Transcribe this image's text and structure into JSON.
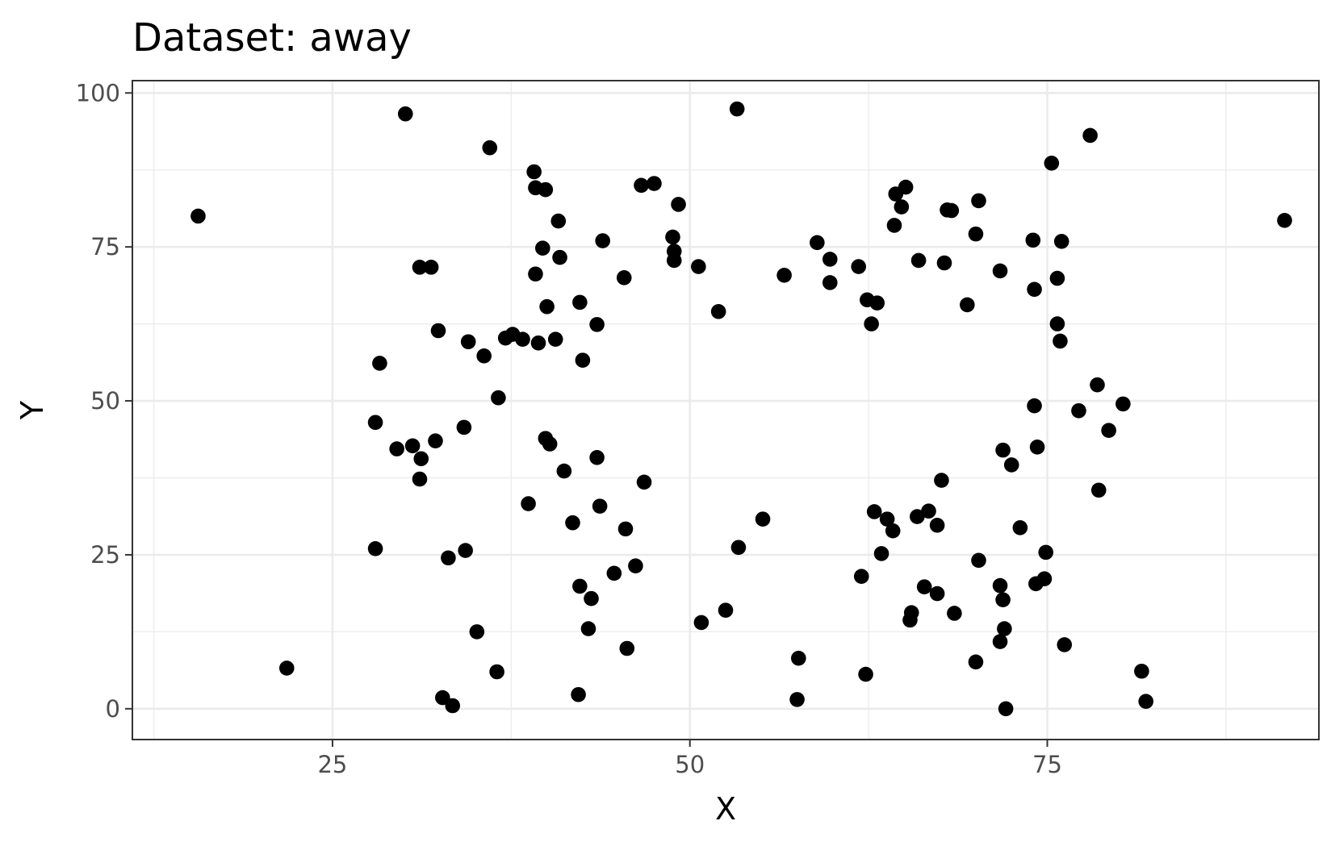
{
  "chart_data": {
    "type": "scatter",
    "title": "Dataset: away",
    "xlabel": "X",
    "ylabel": "Y",
    "xlim": [
      11,
      94
    ],
    "ylim": [
      -5,
      102
    ],
    "x_ticks": [
      25,
      50,
      75
    ],
    "y_ticks": [
      0,
      25,
      50,
      75,
      100
    ],
    "x_minor_ticks": [
      12.5,
      37.5,
      62.5,
      87.5
    ],
    "y_minor_ticks": [
      12.5,
      37.5,
      62.5,
      87.5
    ],
    "grid": true,
    "point_color": "#000000",
    "points": [
      {
        "x": 15.6,
        "y": 80.0
      },
      {
        "x": 21.8,
        "y": 6.6
      },
      {
        "x": 28.0,
        "y": 46.5
      },
      {
        "x": 28.0,
        "y": 26.0
      },
      {
        "x": 28.3,
        "y": 56.1
      },
      {
        "x": 29.5,
        "y": 42.2
      },
      {
        "x": 30.1,
        "y": 96.6
      },
      {
        "x": 30.6,
        "y": 42.7
      },
      {
        "x": 31.1,
        "y": 71.7
      },
      {
        "x": 31.1,
        "y": 37.3
      },
      {
        "x": 31.2,
        "y": 40.6
      },
      {
        "x": 31.9,
        "y": 71.7
      },
      {
        "x": 32.2,
        "y": 43.5
      },
      {
        "x": 32.4,
        "y": 61.4
      },
      {
        "x": 32.7,
        "y": 1.8
      },
      {
        "x": 33.1,
        "y": 24.5
      },
      {
        "x": 33.4,
        "y": 0.5
      },
      {
        "x": 34.2,
        "y": 45.7
      },
      {
        "x": 34.3,
        "y": 25.7
      },
      {
        "x": 34.5,
        "y": 59.6
      },
      {
        "x": 35.1,
        "y": 12.5
      },
      {
        "x": 35.6,
        "y": 57.3
      },
      {
        "x": 36.0,
        "y": 91.1
      },
      {
        "x": 36.5,
        "y": 6.0
      },
      {
        "x": 36.6,
        "y": 50.5
      },
      {
        "x": 37.1,
        "y": 60.2
      },
      {
        "x": 37.6,
        "y": 60.8
      },
      {
        "x": 38.3,
        "y": 60.0
      },
      {
        "x": 38.7,
        "y": 33.3
      },
      {
        "x": 39.1,
        "y": 87.2
      },
      {
        "x": 39.2,
        "y": 84.6
      },
      {
        "x": 39.2,
        "y": 70.6
      },
      {
        "x": 39.4,
        "y": 59.4
      },
      {
        "x": 39.7,
        "y": 74.8
      },
      {
        "x": 39.9,
        "y": 84.3
      },
      {
        "x": 39.9,
        "y": 43.9
      },
      {
        "x": 40.0,
        "y": 65.3
      },
      {
        "x": 40.2,
        "y": 43.0
      },
      {
        "x": 40.6,
        "y": 60.0
      },
      {
        "x": 40.8,
        "y": 79.2
      },
      {
        "x": 40.9,
        "y": 73.3
      },
      {
        "x": 41.2,
        "y": 38.6
      },
      {
        "x": 41.8,
        "y": 30.2
      },
      {
        "x": 42.2,
        "y": 2.3
      },
      {
        "x": 42.3,
        "y": 66.0
      },
      {
        "x": 42.3,
        "y": 19.9
      },
      {
        "x": 42.5,
        "y": 56.6
      },
      {
        "x": 42.9,
        "y": 13.0
      },
      {
        "x": 43.1,
        "y": 17.9
      },
      {
        "x": 43.5,
        "y": 62.4
      },
      {
        "x": 43.5,
        "y": 40.8
      },
      {
        "x": 43.7,
        "y": 32.9
      },
      {
        "x": 43.9,
        "y": 76.0
      },
      {
        "x": 44.7,
        "y": 22.0
      },
      {
        "x": 45.4,
        "y": 70.0
      },
      {
        "x": 45.5,
        "y": 29.2
      },
      {
        "x": 45.6,
        "y": 9.8
      },
      {
        "x": 46.2,
        "y": 23.2
      },
      {
        "x": 46.6,
        "y": 85.0
      },
      {
        "x": 46.8,
        "y": 36.8
      },
      {
        "x": 47.5,
        "y": 85.3
      },
      {
        "x": 48.8,
        "y": 76.6
      },
      {
        "x": 48.9,
        "y": 74.3
      },
      {
        "x": 48.9,
        "y": 72.8
      },
      {
        "x": 49.2,
        "y": 81.9
      },
      {
        "x": 50.6,
        "y": 71.8
      },
      {
        "x": 50.8,
        "y": 14.0
      },
      {
        "x": 52.0,
        "y": 64.5
      },
      {
        "x": 52.5,
        "y": 16.0
      },
      {
        "x": 53.3,
        "y": 97.4
      },
      {
        "x": 53.4,
        "y": 26.2
      },
      {
        "x": 55.1,
        "y": 30.8
      },
      {
        "x": 56.6,
        "y": 70.4
      },
      {
        "x": 57.5,
        "y": 1.5
      },
      {
        "x": 57.6,
        "y": 8.2
      },
      {
        "x": 58.9,
        "y": 75.7
      },
      {
        "x": 59.8,
        "y": 73.0
      },
      {
        "x": 59.8,
        "y": 69.2
      },
      {
        "x": 61.8,
        "y": 71.8
      },
      {
        "x": 62.0,
        "y": 21.5
      },
      {
        "x": 62.3,
        "y": 5.6
      },
      {
        "x": 62.4,
        "y": 66.4
      },
      {
        "x": 62.7,
        "y": 62.5
      },
      {
        "x": 62.9,
        "y": 32.0
      },
      {
        "x": 63.1,
        "y": 65.9
      },
      {
        "x": 63.4,
        "y": 25.2
      },
      {
        "x": 63.8,
        "y": 30.8
      },
      {
        "x": 64.2,
        "y": 28.9
      },
      {
        "x": 64.3,
        "y": 78.5
      },
      {
        "x": 64.4,
        "y": 83.6
      },
      {
        "x": 64.8,
        "y": 81.5
      },
      {
        "x": 65.1,
        "y": 84.7
      },
      {
        "x": 65.4,
        "y": 14.4
      },
      {
        "x": 65.5,
        "y": 15.6
      },
      {
        "x": 65.9,
        "y": 31.2
      },
      {
        "x": 66.0,
        "y": 72.8
      },
      {
        "x": 66.4,
        "y": 19.8
      },
      {
        "x": 66.7,
        "y": 32.1
      },
      {
        "x": 67.3,
        "y": 18.7
      },
      {
        "x": 67.3,
        "y": 29.8
      },
      {
        "x": 67.6,
        "y": 37.1
      },
      {
        "x": 67.8,
        "y": 72.4
      },
      {
        "x": 68.0,
        "y": 81.0
      },
      {
        "x": 68.3,
        "y": 80.9
      },
      {
        "x": 68.5,
        "y": 15.5
      },
      {
        "x": 69.4,
        "y": 65.6
      },
      {
        "x": 70.0,
        "y": 77.1
      },
      {
        "x": 70.0,
        "y": 7.6
      },
      {
        "x": 70.2,
        "y": 82.5
      },
      {
        "x": 70.2,
        "y": 24.1
      },
      {
        "x": 71.7,
        "y": 71.1
      },
      {
        "x": 71.7,
        "y": 20.0
      },
      {
        "x": 71.7,
        "y": 10.9
      },
      {
        "x": 71.9,
        "y": 42.0
      },
      {
        "x": 71.9,
        "y": 17.7
      },
      {
        "x": 72.0,
        "y": 13.0
      },
      {
        "x": 72.1,
        "y": 0.0
      },
      {
        "x": 72.5,
        "y": 39.6
      },
      {
        "x": 73.1,
        "y": 29.4
      },
      {
        "x": 74.0,
        "y": 76.1
      },
      {
        "x": 74.1,
        "y": 49.2
      },
      {
        "x": 74.1,
        "y": 68.1
      },
      {
        "x": 74.2,
        "y": 20.3
      },
      {
        "x": 74.3,
        "y": 42.5
      },
      {
        "x": 74.8,
        "y": 21.1
      },
      {
        "x": 74.9,
        "y": 25.4
      },
      {
        "x": 75.3,
        "y": 88.6
      },
      {
        "x": 75.7,
        "y": 69.9
      },
      {
        "x": 75.7,
        "y": 62.5
      },
      {
        "x": 75.9,
        "y": 59.7
      },
      {
        "x": 76.0,
        "y": 75.9
      },
      {
        "x": 76.2,
        "y": 10.4
      },
      {
        "x": 77.2,
        "y": 48.4
      },
      {
        "x": 78.0,
        "y": 93.1
      },
      {
        "x": 78.5,
        "y": 52.6
      },
      {
        "x": 78.6,
        "y": 35.5
      },
      {
        "x": 79.3,
        "y": 45.2
      },
      {
        "x": 80.3,
        "y": 49.5
      },
      {
        "x": 81.6,
        "y": 6.1
      },
      {
        "x": 81.9,
        "y": 1.2
      },
      {
        "x": 91.6,
        "y": 79.3
      }
    ]
  }
}
